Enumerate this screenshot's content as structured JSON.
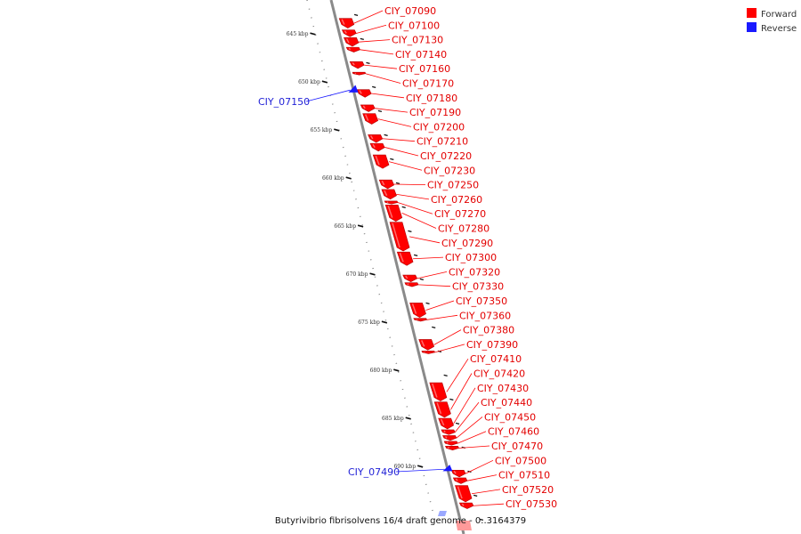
{
  "legend": {
    "items": [
      {
        "label": "Forward",
        "color": "#ff0000"
      },
      {
        "label": "Reverse",
        "color": "#1a1aff"
      }
    ]
  },
  "footer": {
    "label": "Butyrivibrio fibrisolvens 16/4 draft genome - 0..3164379"
  },
  "axis": {
    "unit": "kbp",
    "ticks": [
      {
        "value": 645,
        "label": "645 kbp"
      },
      {
        "value": 650,
        "label": "650 kbp"
      },
      {
        "value": 655,
        "label": "655 kbp"
      },
      {
        "value": 660,
        "label": "660 kbp"
      },
      {
        "value": 665,
        "label": "665 kbp"
      },
      {
        "value": 670,
        "label": "670 kbp"
      },
      {
        "value": 675,
        "label": "675 kbp"
      },
      {
        "value": 680,
        "label": "680 kbp"
      },
      {
        "value": 685,
        "label": "685 kbp"
      },
      {
        "value": 690,
        "label": "690 kbp"
      }
    ]
  },
  "colors": {
    "forward": "#ff0000",
    "reverse": "#1a1aff",
    "backbone": "#8a8a8a"
  },
  "features": {
    "forward": [
      {
        "name": "CIY_07090",
        "start": 643.4,
        "end": 644.4
      },
      {
        "name": "CIY_07100",
        "start": 644.6,
        "end": 645.3
      },
      {
        "name": "CIY_07130",
        "start": 645.4,
        "end": 646.3
      },
      {
        "name": "CIY_07140",
        "start": 646.4,
        "end": 646.9
      },
      {
        "name": "CIY_07160",
        "start": 647.9,
        "end": 648.6
      },
      {
        "name": "CIY_07170",
        "start": 649.0,
        "end": 649.2
      },
      {
        "name": "CIY_07180",
        "start": 650.8,
        "end": 651.6
      },
      {
        "name": "CIY_07190",
        "start": 652.4,
        "end": 653.1
      },
      {
        "name": "CIY_07200",
        "start": 653.3,
        "end": 654.4
      },
      {
        "name": "CIY_07210",
        "start": 655.5,
        "end": 656.3
      },
      {
        "name": "CIY_07220",
        "start": 656.4,
        "end": 657.2
      },
      {
        "name": "CIY_07230",
        "start": 657.6,
        "end": 659.0
      },
      {
        "name": "CIY_07250",
        "start": 660.2,
        "end": 661.1
      },
      {
        "name": "CIY_07260",
        "start": 661.2,
        "end": 662.2
      },
      {
        "name": "CIY_07270",
        "start": 662.4,
        "end": 662.7
      },
      {
        "name": "CIY_07280",
        "start": 662.8,
        "end": 664.5
      },
      {
        "name": "CIY_07290",
        "start": 664.6,
        "end": 667.6
      },
      {
        "name": "CIY_07300",
        "start": 667.7,
        "end": 669.1
      },
      {
        "name": "CIY_07320",
        "start": 670.1,
        "end": 670.8
      },
      {
        "name": "CIY_07330",
        "start": 670.9,
        "end": 671.3
      },
      {
        "name": "CIY_07350",
        "start": 673.0,
        "end": 674.5
      },
      {
        "name": "CIY_07360",
        "start": 674.6,
        "end": 674.9
      },
      {
        "name": "CIY_07380",
        "start": 676.8,
        "end": 677.9
      },
      {
        "name": "CIY_07390",
        "start": 678.0,
        "end": 678.2
      },
      {
        "name": "CIY_07410",
        "start": 681.3,
        "end": 683.2
      },
      {
        "name": "CIY_07420",
        "start": 683.3,
        "end": 684.9
      },
      {
        "name": "CIY_07430",
        "start": 685.0,
        "end": 686.1
      },
      {
        "name": "CIY_07440",
        "start": 686.2,
        "end": 686.7
      },
      {
        "name": "CIY_07450",
        "start": 686.8,
        "end": 687.3
      },
      {
        "name": "CIY_07460",
        "start": 687.4,
        "end": 687.8
      },
      {
        "name": "CIY_07470",
        "start": 687.9,
        "end": 688.3
      },
      {
        "name": "CIY_07500",
        "start": 690.4,
        "end": 691.1
      },
      {
        "name": "CIY_07510",
        "start": 691.2,
        "end": 691.8
      },
      {
        "name": "CIY_07520",
        "start": 692.0,
        "end": 693.7
      },
      {
        "name": "CIY_07530",
        "start": 693.8,
        "end": 694.4
      }
    ],
    "reverse": [
      {
        "name": "CIY_07150",
        "start": 650.6,
        "end": 651.1
      },
      {
        "name": "CIY_07490",
        "start": 690.1,
        "end": 690.5
      }
    ]
  }
}
